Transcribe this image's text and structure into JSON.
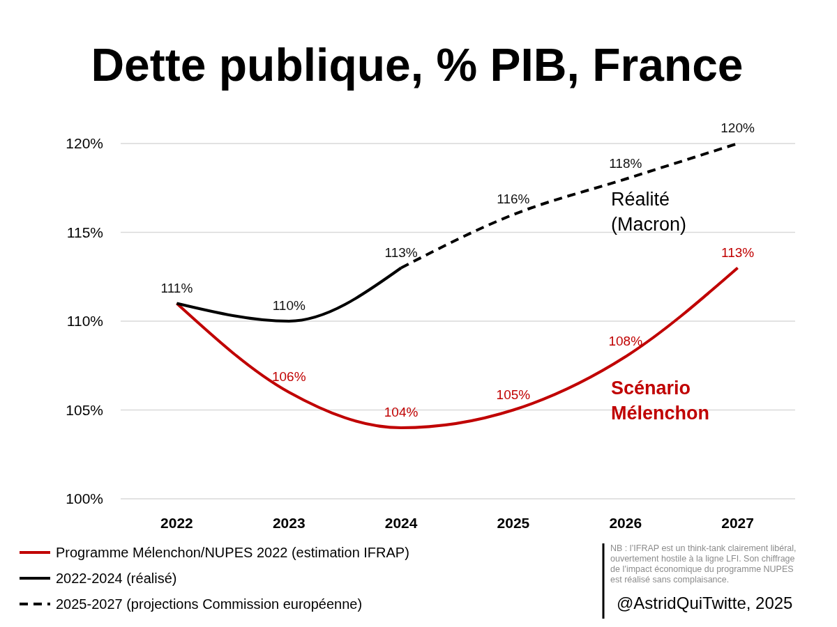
{
  "chart_data": {
    "type": "line",
    "title": "Dette publique, % PIB, France",
    "categories": [
      "2022",
      "2023",
      "2024",
      "2025",
      "2026",
      "2027"
    ],
    "series": [
      {
        "name": "Programme Mélenchon/NUPES 2022 (estimation IFRAP)",
        "color": "#c00000",
        "line_style": "solid",
        "values": [
          111,
          106,
          104,
          105,
          108,
          113
        ],
        "value_labels": [
          null,
          "106%",
          "104%",
          "105%",
          "108%",
          "113%"
        ]
      },
      {
        "name": "2022-2024 (réalisé)",
        "color": "#000000",
        "line_style": "solid",
        "values": [
          111,
          110,
          113,
          null,
          null,
          null
        ],
        "value_labels": [
          "111%",
          "110%",
          "113%",
          null,
          null,
          null
        ]
      },
      {
        "name": "2025-2027 (projections Commission européenne)",
        "color": "#000000",
        "line_style": "dashed",
        "values": [
          null,
          null,
          113,
          116,
          118,
          120
        ],
        "value_labels": [
          null,
          null,
          null,
          "116%",
          "118%",
          "120%"
        ]
      }
    ],
    "ylim": [
      100,
      120
    ],
    "yticks": [
      {
        "value": 100,
        "label": "100%"
      },
      {
        "value": 105,
        "label": "105%"
      },
      {
        "value": 110,
        "label": "110%"
      },
      {
        "value": 115,
        "label": "115%"
      },
      {
        "value": 120,
        "label": "120%"
      }
    ],
    "grid": "y",
    "legend": "bottom left",
    "marker": "none",
    "annotations": [
      "Réalité\n(Macron)",
      "Scénario\nMélenchon",
      "NB : l’IFRAP est un think-tank clairement libéral,\nouvertement hostile à la ligne LFI. Son chiffrage\nde l’impact économique du programme NUPES\nest réalisé sans complaisance.",
      "@AstridQuiTwitte, 2025"
    ]
  }
}
